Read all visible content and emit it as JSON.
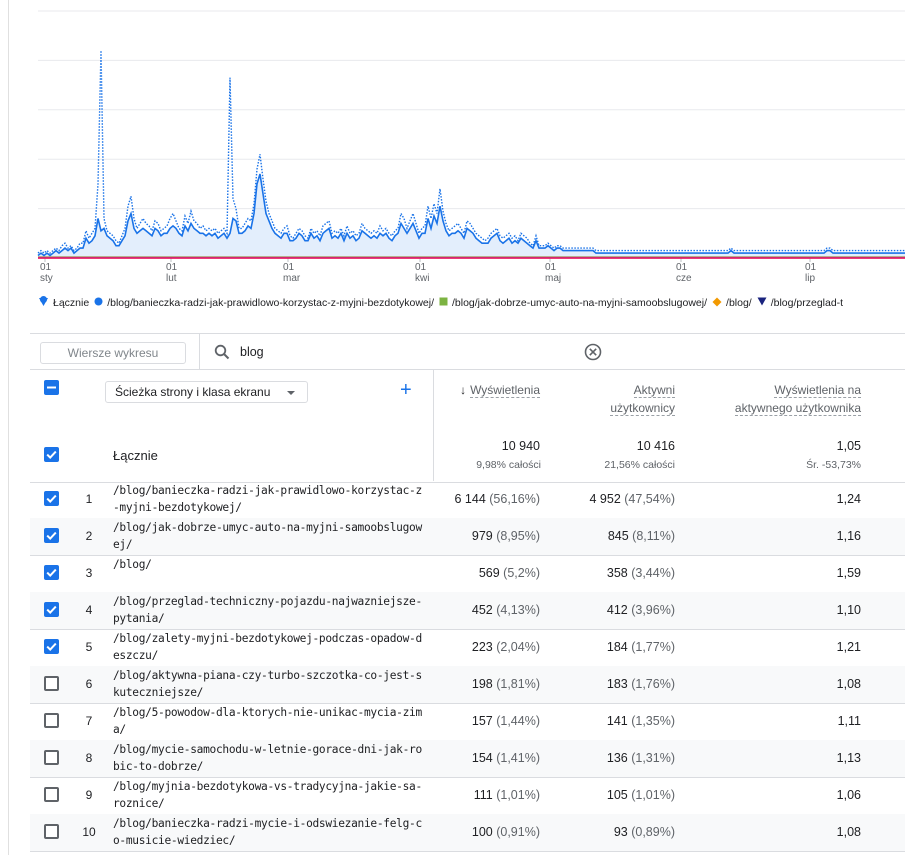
{
  "chart_data": {
    "type": "line",
    "x_ticks": [
      {
        "day": "01",
        "month": "sty"
      },
      {
        "day": "01",
        "month": "lut"
      },
      {
        "day": "01",
        "month": "mar"
      },
      {
        "day": "01",
        "month": "kwi"
      },
      {
        "day": "01",
        "month": "maj"
      },
      {
        "day": "01",
        "month": "cze"
      },
      {
        "day": "01",
        "month": "lip"
      }
    ],
    "series": [
      {
        "name": "Łącznie",
        "color": "#1a73e8",
        "style": "dotted",
        "values": [
          2,
          3,
          2,
          3,
          2,
          3,
          4,
          3,
          5,
          6,
          4,
          5,
          3,
          4,
          6,
          6,
          11,
          8,
          10,
          12,
          30,
          84,
          16,
          11,
          10,
          9,
          7,
          6,
          9,
          12,
          21,
          25,
          16,
          12,
          14,
          16,
          14,
          13,
          11,
          15,
          14,
          11,
          12,
          13,
          16,
          18,
          15,
          12,
          11,
          17,
          14,
          19,
          15,
          14,
          12,
          13,
          11,
          12,
          11,
          12,
          10,
          11,
          12,
          10,
          73,
          24,
          20,
          12,
          12,
          14,
          16,
          15,
          22,
          36,
          42,
          32,
          23,
          18,
          15,
          12,
          11,
          10,
          12,
          13,
          9,
          8,
          10,
          12,
          11,
          9,
          8,
          12,
          10,
          11,
          9,
          13,
          14,
          15,
          10,
          11,
          10,
          12,
          9,
          13,
          10,
          11,
          9,
          10,
          14,
          12,
          11,
          10,
          11,
          10,
          13,
          11,
          12,
          10,
          9,
          11,
          12,
          18,
          16,
          12,
          15,
          18,
          14,
          10,
          12,
          13,
          21,
          16,
          22,
          18,
          28,
          19,
          14,
          11,
          12,
          13,
          14,
          12,
          10,
          15,
          14,
          12,
          10,
          9,
          8,
          7,
          8,
          10,
          11,
          12,
          9,
          8,
          9,
          10,
          8,
          9,
          7,
          10,
          9,
          8,
          6,
          5,
          9,
          5,
          5,
          5,
          6,
          5,
          4,
          5,
          5,
          4,
          4,
          4,
          4,
          4,
          4,
          4,
          4,
          4,
          4,
          4,
          3,
          3,
          3,
          3,
          3,
          3,
          3,
          3,
          3,
          3,
          3,
          3,
          3,
          3,
          3,
          3,
          3,
          3,
          3,
          3,
          3,
          3,
          3,
          3,
          3,
          3,
          3,
          3,
          3,
          3,
          3,
          3,
          3,
          3,
          3,
          3,
          3,
          3,
          3,
          3,
          3,
          3,
          3,
          3,
          3,
          4,
          3,
          3,
          3,
          3,
          3,
          3,
          3,
          3,
          3,
          3,
          3,
          3,
          3,
          3,
          3,
          3,
          3,
          3,
          3,
          3,
          3,
          3,
          3,
          3,
          3,
          3,
          3,
          3,
          3,
          3,
          3,
          4,
          4,
          3,
          3,
          3,
          3,
          3,
          3,
          3,
          3,
          3,
          3,
          3,
          3,
          3,
          3,
          3,
          3,
          3,
          3,
          3,
          3,
          3,
          3,
          3,
          3,
          3
        ]
      },
      {
        "name": "/blog/banieczka-radzi-jak-prawidlowo-korzystac-z-myjni-bezdotykowej/",
        "color": "#1a73e8",
        "style": "solid",
        "values": [
          1,
          2,
          1,
          2,
          1,
          2,
          3,
          2,
          3,
          4,
          3,
          4,
          2,
          3,
          4,
          4,
          8,
          6,
          7,
          9,
          16,
          11,
          12,
          9,
          8,
          7,
          5,
          5,
          7,
          9,
          15,
          18,
          12,
          10,
          11,
          12,
          11,
          10,
          9,
          12,
          11,
          9,
          10,
          10,
          12,
          13,
          12,
          10,
          9,
          13,
          11,
          14,
          12,
          11,
          10,
          10,
          9,
          10,
          9,
          10,
          8,
          9,
          10,
          8,
          10,
          16,
          15,
          10,
          10,
          11,
          13,
          12,
          18,
          30,
          34,
          26,
          18,
          15,
          12,
          10,
          9,
          8,
          10,
          10,
          7,
          7,
          8,
          10,
          9,
          7,
          7,
          10,
          8,
          9,
          7,
          10,
          11,
          12,
          8,
          9,
          8,
          10,
          7,
          10,
          8,
          9,
          7,
          8,
          11,
          10,
          9,
          8,
          9,
          8,
          10,
          9,
          10,
          8,
          7,
          9,
          10,
          14,
          12,
          10,
          12,
          14,
          11,
          8,
          10,
          10,
          16,
          12,
          17,
          14,
          21,
          15,
          11,
          9,
          10,
          10,
          11,
          10,
          8,
          12,
          11,
          10,
          8,
          7,
          6,
          6,
          6,
          8,
          9,
          10,
          7,
          6,
          7,
          8,
          6,
          7,
          6,
          8,
          7,
          6,
          5,
          4,
          7,
          4,
          4,
          4,
          5,
          4,
          3,
          4,
          4,
          3,
          3,
          3,
          3,
          3,
          3,
          3,
          3,
          3,
          3,
          3,
          2,
          2,
          2,
          2,
          2,
          2,
          2,
          2,
          2,
          2,
          2,
          2,
          2,
          2,
          2,
          2,
          2,
          2,
          2,
          2,
          2,
          2,
          2,
          2,
          2,
          2,
          2,
          2,
          2,
          2,
          2,
          2,
          2,
          2,
          2,
          2,
          2,
          2,
          2,
          2,
          2,
          2,
          2,
          2,
          2,
          3,
          2,
          2,
          2,
          2,
          2,
          2,
          2,
          2,
          2,
          2,
          2,
          2,
          2,
          2,
          2,
          2,
          2,
          2,
          2,
          2,
          2,
          2,
          2,
          2,
          2,
          2,
          2,
          2,
          2,
          2,
          2,
          3,
          3,
          2,
          2,
          2,
          2,
          2,
          2,
          2,
          2,
          2,
          2,
          2,
          2,
          2,
          2,
          2,
          2,
          2,
          2,
          2,
          2,
          2,
          2,
          2,
          2,
          2
        ]
      },
      {
        "name": "/blog/jak-dobrze-umyc-auto-na-myjni-samoobslugowej/",
        "color": "#7cb342",
        "style": "solid"
      },
      {
        "name": "/blog/",
        "color": "#f29900",
        "style": "solid"
      },
      {
        "name": "/blog/przeglad-t",
        "color": "#1a237e",
        "style": "solid"
      },
      {
        "name": "",
        "color": "#e91e63",
        "style": "solid"
      }
    ],
    "ylim": [
      0,
      100
    ],
    "grid": true
  },
  "legend": [
    {
      "label": "Łącznie",
      "marker": "drop",
      "color": "#1a73e8"
    },
    {
      "label": "/blog/banieczka-radzi-jak-prawidlowo-korzystac-z-myjni-bezdotykowej/",
      "marker": "circle",
      "color": "#1a73e8"
    },
    {
      "label": "/blog/jak-dobrze-umyc-auto-na-myjni-samoobslugowej/",
      "marker": "square",
      "color": "#7cb342"
    },
    {
      "label": "/blog/",
      "marker": "diamond",
      "color": "#f29900"
    },
    {
      "label": "/blog/przeglad-t",
      "marker": "triangle",
      "color": "#1a237e"
    }
  ],
  "toolbar": {
    "rows_button": "Wiersze wykresu",
    "search_value": "blog"
  },
  "table": {
    "dimension_label": "Ścieżka strony i klasa ekranu",
    "columns": [
      {
        "line1": "Wyświetlenia",
        "line2": "",
        "sorted": true
      },
      {
        "line1": "Aktywni",
        "line2": "użytkownicy",
        "sorted": false
      },
      {
        "line1": "Wyświetlenia na",
        "line2": "aktywnego użytkownika",
        "sorted": false
      }
    ],
    "totals": {
      "label": "Łącznie",
      "views": "10 940",
      "views_sub": "9,98% całości",
      "users": "10 416",
      "users_sub": "21,56% całości",
      "per_user": "1,05",
      "per_user_sub": "Śr. -53,73%"
    },
    "rows": [
      {
        "num": "1",
        "path": "/blog/banieczka-radzi-jak-prawidlowo-korzystac-z-myjni-bezdotykowej/",
        "views": "6 144",
        "views_pct": "(56,16%)",
        "users": "4 952",
        "users_pct": "(47,54%)",
        "per_user": "1,24",
        "checked": true
      },
      {
        "num": "2",
        "path": "/blog/jak-dobrze-umyc-auto-na-myjni-samoobslugowej/",
        "views": "979",
        "views_pct": "(8,95%)",
        "users": "845",
        "users_pct": "(8,11%)",
        "per_user": "1,16",
        "checked": true
      },
      {
        "num": "3",
        "path": "/blog/",
        "views": "569",
        "views_pct": "(5,2%)",
        "users": "358",
        "users_pct": "(3,44%)",
        "per_user": "1,59",
        "checked": true
      },
      {
        "num": "4",
        "path": "/blog/przeglad-techniczny-pojazdu-najwazniejsze-pytania/",
        "views": "452",
        "views_pct": "(4,13%)",
        "users": "412",
        "users_pct": "(3,96%)",
        "per_user": "1,10",
        "checked": true
      },
      {
        "num": "5",
        "path": "/blog/zalety-myjni-bezdotykowej-podczas-opadow-deszczu/",
        "views": "223",
        "views_pct": "(2,04%)",
        "users": "184",
        "users_pct": "(1,77%)",
        "per_user": "1,21",
        "checked": true
      },
      {
        "num": "6",
        "path": "/blog/aktywna-piana-czy-turbo-szczotka-co-jest-skuteczniejsze/",
        "views": "198",
        "views_pct": "(1,81%)",
        "users": "183",
        "users_pct": "(1,76%)",
        "per_user": "1,08",
        "checked": false
      },
      {
        "num": "7",
        "path": "/blog/5-powodow-dla-ktorych-nie-unikac-mycia-zima/",
        "views": "157",
        "views_pct": "(1,44%)",
        "users": "141",
        "users_pct": "(1,35%)",
        "per_user": "1,11",
        "checked": false
      },
      {
        "num": "8",
        "path": "/blog/mycie-samochodu-w-letnie-gorace-dni-jak-robic-to-dobrze/",
        "views": "154",
        "views_pct": "(1,41%)",
        "users": "136",
        "users_pct": "(1,31%)",
        "per_user": "1,13",
        "checked": false
      },
      {
        "num": "9",
        "path": "/blog/myjnia-bezdotykowa-vs-tradycyjna-jakie-sa-roznice/",
        "views": "111",
        "views_pct": "(1,01%)",
        "users": "105",
        "users_pct": "(1,01%)",
        "per_user": "1,06",
        "checked": false
      },
      {
        "num": "10",
        "path": "/blog/banieczka-radzi-mycie-i-odswiezanie-felg-co-musicie-wiedziec/",
        "views": "100",
        "views_pct": "(0,91%)",
        "users": "93",
        "users_pct": "(0,89%)",
        "per_user": "1,08",
        "checked": false
      }
    ]
  }
}
